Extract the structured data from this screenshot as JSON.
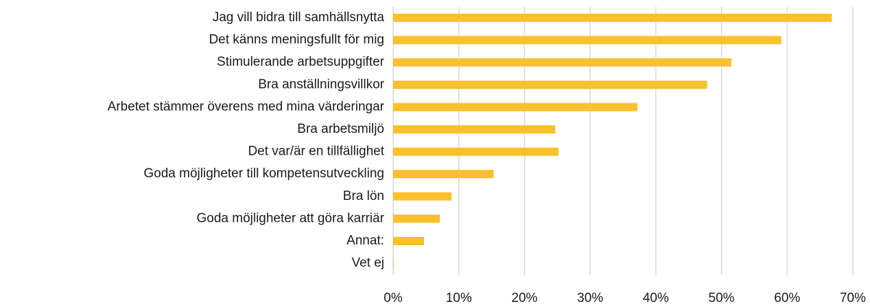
{
  "chart_data": {
    "type": "bar",
    "orientation": "horizontal",
    "categories": [
      "Jag vill bidra till samhällsnytta",
      "Det känns meningsfullt för mig",
      "Stimulerande arbetsuppgifter",
      "Bra anställningsvillkor",
      "Arbetet stämmer överens med mina värderingar",
      "Bra arbetsmiljö",
      "Det var/är en tillfällighet",
      "Goda möjligheter till kompetensutveckling",
      "Bra lön",
      "Goda möjligheter att göra karriär",
      "Annat:",
      "Vet ej"
    ],
    "values": [
      66.8,
      59.1,
      51.5,
      47.8,
      37.2,
      24.7,
      25.2,
      15.3,
      8.9,
      7.1,
      4.7,
      0.1
    ],
    "color": "#fbc02d",
    "xlim": [
      0,
      70
    ],
    "xticks": [
      {
        "value": 0,
        "label": "0%"
      },
      {
        "value": 10,
        "label": "10%"
      },
      {
        "value": 20,
        "label": "20%"
      },
      {
        "value": 30,
        "label": "30%"
      },
      {
        "value": 40,
        "label": "40%"
      },
      {
        "value": 50,
        "label": "50%"
      },
      {
        "value": 60,
        "label": "60%"
      },
      {
        "value": 70,
        "label": "70%"
      }
    ],
    "grid": true
  }
}
